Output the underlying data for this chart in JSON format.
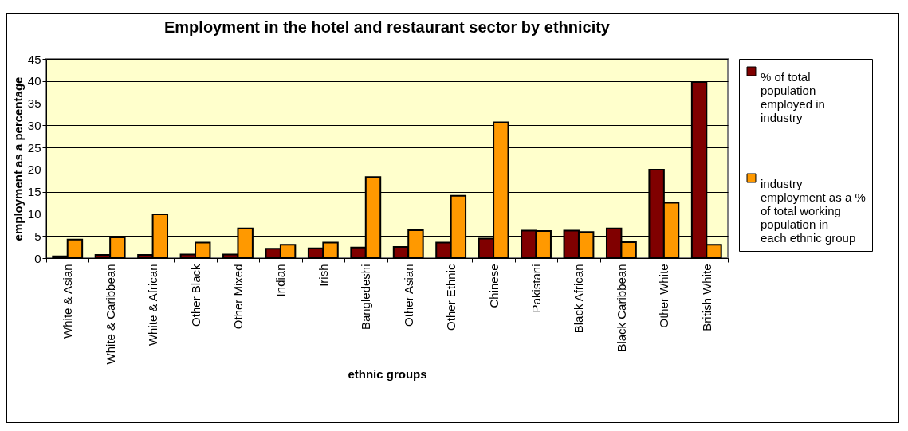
{
  "chart_data": {
    "type": "bar",
    "title": "Employment in the hotel and restaurant sector by ethnicity",
    "xlabel": "ethnic groups",
    "ylabel": "employment as a percentage",
    "categories": [
      "White & Asian",
      "White & Caribbean",
      "White & African",
      "Other Black",
      "Other Mixed",
      "Indian",
      "Irish",
      "Bangledeshi",
      "Other Asian",
      "Other Ethnic",
      "Chinese",
      "Pakistani",
      "Black African",
      "Black Caribbean",
      "Other White",
      "British White"
    ],
    "series": [
      {
        "name": "% of total population employed in industry",
        "color": "#800000",
        "values": [
          0.4,
          0.7,
          0.7,
          0.8,
          0.8,
          2.1,
          2.2,
          2.4,
          2.5,
          3.5,
          4.4,
          6.2,
          6.2,
          6.7,
          20.0,
          39.8
        ]
      },
      {
        "name": "industry employment as a % of total working population in each ethnic group",
        "color": "#ff9900",
        "values": [
          4.2,
          4.7,
          9.9,
          3.5,
          6.7,
          3.0,
          3.5,
          18.3,
          6.3,
          14.1,
          30.7,
          6.1,
          5.9,
          3.6,
          12.5,
          3.0
        ]
      }
    ],
    "ylim": [
      0,
      45
    ],
    "yticks": [
      0,
      5,
      10,
      15,
      20,
      25,
      30,
      35,
      40,
      45
    ],
    "grid": "y",
    "legend": "right"
  }
}
